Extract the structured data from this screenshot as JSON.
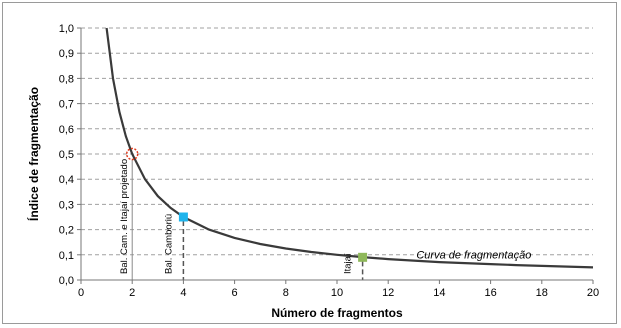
{
  "chart_data": {
    "type": "line",
    "xlabel": "Número de fragmentos",
    "ylabel": "Índice de fragmentação",
    "xlim": [
      0,
      20
    ],
    "ylim": [
      0,
      1.0
    ],
    "x_ticks": [
      "0",
      "2",
      "4",
      "6",
      "8",
      "10",
      "12",
      "14",
      "16",
      "18",
      "20"
    ],
    "y_ticks": [
      "0,0",
      "0,1",
      "0,2",
      "0,3",
      "0,4",
      "0,5",
      "0,6",
      "0,7",
      "0,8",
      "0,9",
      "1,0"
    ],
    "grid": "horizontal dashed",
    "series": [
      {
        "name": "Curva de fragmentação",
        "function": "y = 1/x",
        "x": [
          1,
          1.25,
          1.5,
          1.75,
          2,
          2.5,
          3,
          3.5,
          4,
          5,
          6,
          7,
          8,
          9,
          10,
          11,
          12,
          13,
          14,
          15,
          16,
          17,
          18,
          19,
          20
        ],
        "values": [
          1.0,
          0.8,
          0.667,
          0.571,
          0.5,
          0.4,
          0.333,
          0.286,
          0.25,
          0.2,
          0.167,
          0.143,
          0.125,
          0.111,
          0.1,
          0.091,
          0.083,
          0.077,
          0.071,
          0.067,
          0.063,
          0.059,
          0.056,
          0.053,
          0.05
        ]
      }
    ],
    "points": [
      {
        "label": "Bal. Cam. e Itajaí projetado",
        "x": 2,
        "y": 0.5,
        "style": "dashed-circle",
        "color": "#e03c1e"
      },
      {
        "label": "Bal. Camboriú",
        "x": 4,
        "y": 0.25,
        "style": "square",
        "color": "#1fb4ec"
      },
      {
        "label": "Itajaí",
        "x": 11,
        "y": 0.09,
        "style": "square",
        "color": "#8fb85a"
      }
    ],
    "colors": {
      "curve": "#3a3a3a",
      "grid": "#a0a0a0"
    }
  }
}
